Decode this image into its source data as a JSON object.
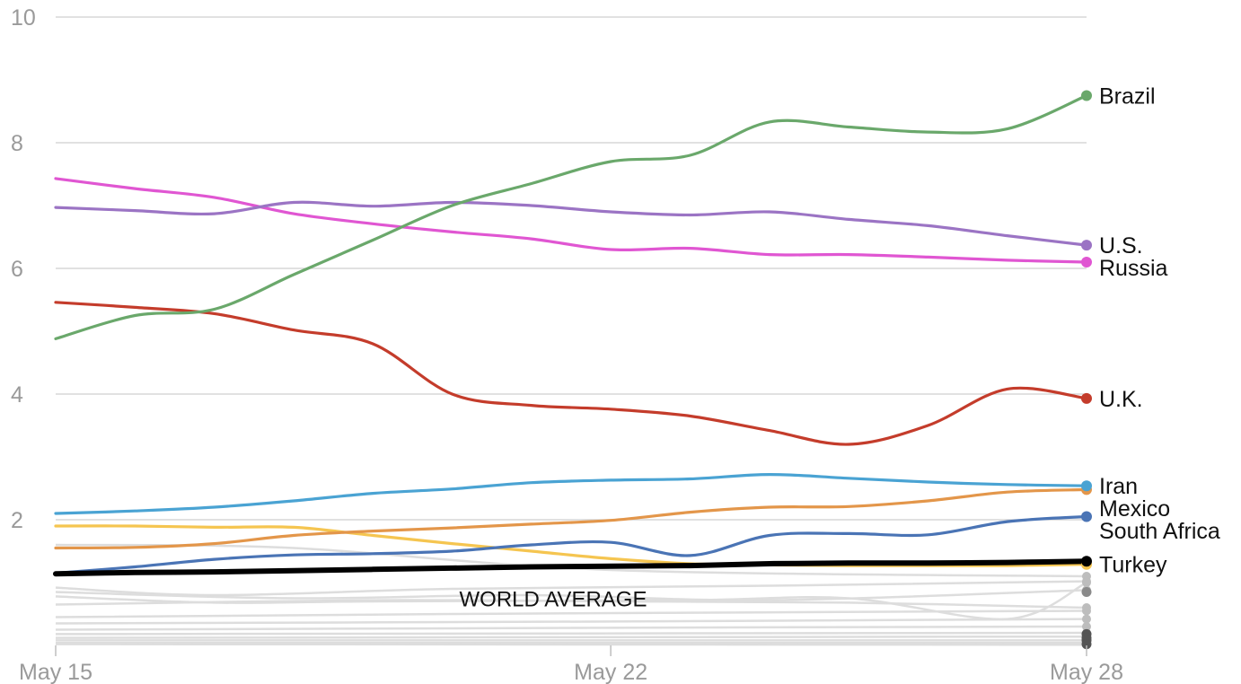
{
  "chart_data": {
    "type": "line",
    "ylim": [
      0,
      10
    ],
    "yticks": [
      "10",
      "8",
      "6",
      "4",
      "2"
    ],
    "yticks_values": [
      10,
      8,
      6,
      4,
      2
    ],
    "xlim": [
      "2020-05-15",
      "2020-05-28"
    ],
    "xticks": [
      {
        "date": "2020-05-15",
        "label": "May 15"
      },
      {
        "date": "2020-05-22",
        "label": "May 22"
      },
      {
        "date": "2020-05-28",
        "label": "May 28"
      }
    ],
    "grid": true,
    "colors": {
      "Brazil": "#6aa86b",
      "U.S.": "#9b74c4",
      "Russia": "#e056d2",
      "U.K.": "#c43c2b",
      "Iran": "#4aa3d3",
      "Mexico": "#e3964a",
      "South Africa": "#4a74b5",
      "Turkey": "#f5c550",
      "WORLD AVERAGE": "#000000",
      "background": "#dddddd"
    },
    "series": [
      {
        "name": "Brazil",
        "points": [
          [
            "2020-05-15",
            4.88
          ],
          [
            "2020-05-16",
            5.25
          ],
          [
            "2020-05-17",
            5.35
          ],
          [
            "2020-05-18",
            5.9
          ],
          [
            "2020-05-19",
            6.45
          ],
          [
            "2020-05-20",
            7.0
          ],
          [
            "2020-05-21",
            7.35
          ],
          [
            "2020-05-22",
            7.7
          ],
          [
            "2020-05-23",
            7.8
          ],
          [
            "2020-05-24",
            8.33
          ],
          [
            "2020-05-25",
            8.25
          ],
          [
            "2020-05-26",
            8.17
          ],
          [
            "2020-05-27",
            8.22
          ],
          [
            "2020-05-28",
            8.75
          ]
        ]
      },
      {
        "name": "U.S.",
        "points": [
          [
            "2020-05-15",
            6.97
          ],
          [
            "2020-05-16",
            6.92
          ],
          [
            "2020-05-17",
            6.87
          ],
          [
            "2020-05-18",
            7.05
          ],
          [
            "2020-05-19",
            6.99
          ],
          [
            "2020-05-20",
            7.05
          ],
          [
            "2020-05-21",
            7.0
          ],
          [
            "2020-05-22",
            6.9
          ],
          [
            "2020-05-23",
            6.85
          ],
          [
            "2020-05-24",
            6.9
          ],
          [
            "2020-05-25",
            6.78
          ],
          [
            "2020-05-26",
            6.68
          ],
          [
            "2020-05-27",
            6.52
          ],
          [
            "2020-05-28",
            6.37
          ]
        ]
      },
      {
        "name": "Russia",
        "points": [
          [
            "2020-05-15",
            7.43
          ],
          [
            "2020-05-16",
            7.27
          ],
          [
            "2020-05-17",
            7.13
          ],
          [
            "2020-05-18",
            6.87
          ],
          [
            "2020-05-19",
            6.71
          ],
          [
            "2020-05-20",
            6.58
          ],
          [
            "2020-05-21",
            6.47
          ],
          [
            "2020-05-22",
            6.3
          ],
          [
            "2020-05-23",
            6.32
          ],
          [
            "2020-05-24",
            6.22
          ],
          [
            "2020-05-25",
            6.22
          ],
          [
            "2020-05-26",
            6.18
          ],
          [
            "2020-05-27",
            6.13
          ],
          [
            "2020-05-28",
            6.1
          ]
        ]
      },
      {
        "name": "U.K.",
        "points": [
          [
            "2020-05-15",
            5.46
          ],
          [
            "2020-05-16",
            5.38
          ],
          [
            "2020-05-17",
            5.28
          ],
          [
            "2020-05-18",
            5.02
          ],
          [
            "2020-05-19",
            4.8
          ],
          [
            "2020-05-20",
            4.0
          ],
          [
            "2020-05-21",
            3.82
          ],
          [
            "2020-05-22",
            3.76
          ],
          [
            "2020-05-23",
            3.65
          ],
          [
            "2020-05-24",
            3.42
          ],
          [
            "2020-05-25",
            3.2
          ],
          [
            "2020-05-26",
            3.5
          ],
          [
            "2020-05-27",
            4.08
          ],
          [
            "2020-05-28",
            3.93
          ]
        ]
      },
      {
        "name": "Iran",
        "points": [
          [
            "2020-05-15",
            2.1
          ],
          [
            "2020-05-16",
            2.14
          ],
          [
            "2020-05-17",
            2.2
          ],
          [
            "2020-05-18",
            2.3
          ],
          [
            "2020-05-19",
            2.42
          ],
          [
            "2020-05-20",
            2.49
          ],
          [
            "2020-05-21",
            2.59
          ],
          [
            "2020-05-22",
            2.63
          ],
          [
            "2020-05-23",
            2.65
          ],
          [
            "2020-05-24",
            2.72
          ],
          [
            "2020-05-25",
            2.66
          ],
          [
            "2020-05-26",
            2.6
          ],
          [
            "2020-05-27",
            2.56
          ],
          [
            "2020-05-28",
            2.54
          ]
        ]
      },
      {
        "name": "Mexico",
        "points": [
          [
            "2020-05-15",
            1.55
          ],
          [
            "2020-05-16",
            1.56
          ],
          [
            "2020-05-17",
            1.62
          ],
          [
            "2020-05-18",
            1.75
          ],
          [
            "2020-05-19",
            1.82
          ],
          [
            "2020-05-20",
            1.87
          ],
          [
            "2020-05-21",
            1.93
          ],
          [
            "2020-05-22",
            1.99
          ],
          [
            "2020-05-23",
            2.12
          ],
          [
            "2020-05-24",
            2.2
          ],
          [
            "2020-05-25",
            2.21
          ],
          [
            "2020-05-26",
            2.3
          ],
          [
            "2020-05-27",
            2.44
          ],
          [
            "2020-05-28",
            2.48
          ]
        ]
      },
      {
        "name": "South Africa",
        "points": [
          [
            "2020-05-15",
            1.15
          ],
          [
            "2020-05-16",
            1.25
          ],
          [
            "2020-05-17",
            1.37
          ],
          [
            "2020-05-18",
            1.44
          ],
          [
            "2020-05-19",
            1.46
          ],
          [
            "2020-05-20",
            1.5
          ],
          [
            "2020-05-21",
            1.6
          ],
          [
            "2020-05-22",
            1.64
          ],
          [
            "2020-05-23",
            1.43
          ],
          [
            "2020-05-24",
            1.75
          ],
          [
            "2020-05-25",
            1.78
          ],
          [
            "2020-05-26",
            1.76
          ],
          [
            "2020-05-27",
            1.97
          ],
          [
            "2020-05-28",
            2.05
          ]
        ]
      },
      {
        "name": "Turkey",
        "points": [
          [
            "2020-05-15",
            1.9
          ],
          [
            "2020-05-16",
            1.9
          ],
          [
            "2020-05-17",
            1.88
          ],
          [
            "2020-05-18",
            1.88
          ],
          [
            "2020-05-19",
            1.75
          ],
          [
            "2020-05-20",
            1.62
          ],
          [
            "2020-05-21",
            1.5
          ],
          [
            "2020-05-22",
            1.38
          ],
          [
            "2020-05-23",
            1.3
          ],
          [
            "2020-05-24",
            1.28
          ],
          [
            "2020-05-25",
            1.27
          ],
          [
            "2020-05-26",
            1.27
          ],
          [
            "2020-05-27",
            1.27
          ],
          [
            "2020-05-28",
            1.29
          ]
        ]
      },
      {
        "name": "WORLD AVERAGE",
        "points": [
          [
            "2020-05-15",
            1.14
          ],
          [
            "2020-05-16",
            1.16
          ],
          [
            "2020-05-17",
            1.17
          ],
          [
            "2020-05-18",
            1.19
          ],
          [
            "2020-05-19",
            1.21
          ],
          [
            "2020-05-20",
            1.23
          ],
          [
            "2020-05-21",
            1.25
          ],
          [
            "2020-05-22",
            1.26
          ],
          [
            "2020-05-23",
            1.27
          ],
          [
            "2020-05-24",
            1.3
          ],
          [
            "2020-05-25",
            1.31
          ],
          [
            "2020-05-26",
            1.31
          ],
          [
            "2020-05-27",
            1.32
          ],
          [
            "2020-05-28",
            1.34
          ]
        ]
      }
    ],
    "background_series": [
      {
        "points": [
          [
            "2020-05-15",
            1.6
          ],
          [
            "2020-05-18",
            1.55
          ],
          [
            "2020-05-22",
            1.2
          ],
          [
            "2020-05-28",
            1.1
          ]
        ]
      },
      {
        "points": [
          [
            "2020-05-15",
            0.92
          ],
          [
            "2020-05-17",
            0.8
          ],
          [
            "2020-05-20",
            0.9
          ],
          [
            "2020-05-24",
            0.95
          ],
          [
            "2020-05-28",
            1.02
          ]
        ]
      },
      {
        "points": [
          [
            "2020-05-15",
            0.85
          ],
          [
            "2020-05-18",
            0.75
          ],
          [
            "2020-05-21",
            0.8
          ],
          [
            "2020-05-24",
            0.72
          ],
          [
            "2020-05-28",
            0.88
          ]
        ]
      },
      {
        "points": [
          [
            "2020-05-15",
            0.78
          ],
          [
            "2020-05-17",
            0.68
          ],
          [
            "2020-05-19",
            0.7
          ],
          [
            "2020-05-23",
            0.72
          ],
          [
            "2020-05-25",
            0.75
          ],
          [
            "2020-05-27",
            0.42
          ],
          [
            "2020-05-28",
            1.0
          ]
        ]
      },
      {
        "points": [
          [
            "2020-05-15",
            0.65
          ],
          [
            "2020-05-19",
            0.72
          ],
          [
            "2020-05-22",
            0.7
          ],
          [
            "2020-05-25",
            0.68
          ],
          [
            "2020-05-28",
            0.6
          ]
        ]
      },
      {
        "points": [
          [
            "2020-05-15",
            0.45
          ],
          [
            "2020-05-20",
            0.5
          ],
          [
            "2020-05-28",
            0.55
          ]
        ]
      },
      {
        "points": [
          [
            "2020-05-15",
            0.35
          ],
          [
            "2020-05-22",
            0.38
          ],
          [
            "2020-05-28",
            0.42
          ]
        ]
      },
      {
        "points": [
          [
            "2020-05-15",
            0.25
          ],
          [
            "2020-05-22",
            0.28
          ],
          [
            "2020-05-28",
            0.3
          ]
        ]
      },
      {
        "points": [
          [
            "2020-05-15",
            0.18
          ],
          [
            "2020-05-28",
            0.2
          ]
        ]
      },
      {
        "points": [
          [
            "2020-05-15",
            0.12
          ],
          [
            "2020-05-28",
            0.14
          ]
        ]
      },
      {
        "points": [
          [
            "2020-05-15",
            0.08
          ],
          [
            "2020-05-28",
            0.08
          ]
        ]
      },
      {
        "points": [
          [
            "2020-05-15",
            0.04
          ],
          [
            "2020-05-28",
            0.04
          ]
        ]
      },
      {
        "points": [
          [
            "2020-05-15",
            0.02
          ],
          [
            "2020-05-28",
            0.01
          ]
        ]
      }
    ],
    "end_labels": [
      {
        "series": "Brazil",
        "text": "Brazil"
      },
      {
        "series": "U.S.",
        "text": "U.S."
      },
      {
        "series": "Russia",
        "text": "Russia"
      },
      {
        "series": "U.K.",
        "text": "U.K."
      },
      {
        "series": "Iran",
        "text": "Iran"
      },
      {
        "series": "Mexico",
        "text": "Mexico"
      },
      {
        "series": "South Africa",
        "text": "South Africa"
      },
      {
        "series": "Turkey",
        "text": "Turkey"
      }
    ],
    "annotations": [
      {
        "text": "WORLD AVERAGE",
        "date": "2020-05-20",
        "value": 0.88
      }
    ]
  }
}
